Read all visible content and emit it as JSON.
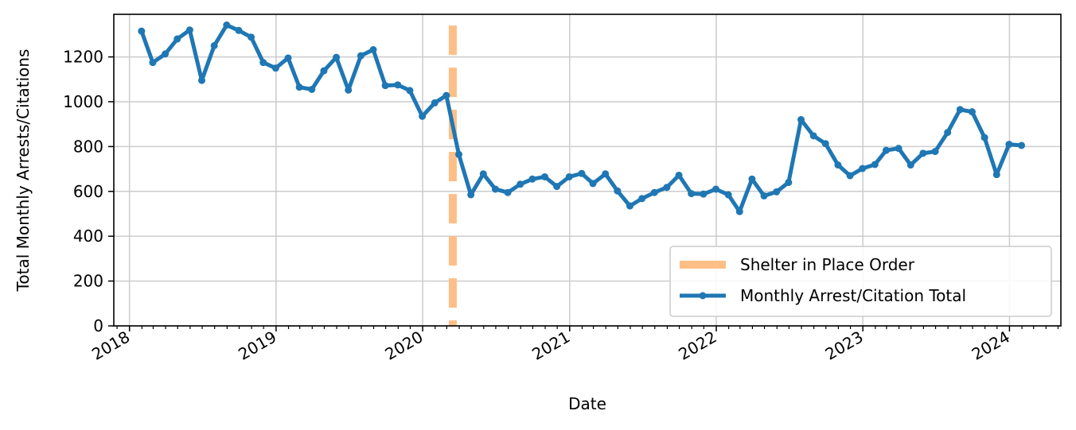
{
  "chart_data": {
    "type": "line",
    "xlabel": "Date",
    "ylabel": "Total Monthly Arrests/Citations",
    "ylim": [
      0,
      1390
    ],
    "xlim": [
      "2017-11-23",
      "2024-05-08"
    ],
    "yticks": [
      0,
      200,
      400,
      600,
      800,
      1000,
      1200
    ],
    "xticks": [
      {
        "date": "2018-01-01",
        "label": "2018"
      },
      {
        "date": "2019-01-01",
        "label": "2019"
      },
      {
        "date": "2020-01-01",
        "label": "2020"
      },
      {
        "date": "2021-01-01",
        "label": "2021"
      },
      {
        "date": "2022-01-01",
        "label": "2022"
      },
      {
        "date": "2023-01-01",
        "label": "2023"
      },
      {
        "date": "2024-01-01",
        "label": "2024"
      }
    ],
    "grid": true,
    "legend_position": "bottom-right",
    "vline": {
      "name": "Shelter in Place Order",
      "date": "2020-03-16",
      "color": "#fdbf86",
      "ymax": 1340
    },
    "series": [
      {
        "name": "Monthly Arrest/Citation Total",
        "color": "#1f77b4",
        "x": [
          "2018-01-31",
          "2018-02-28",
          "2018-03-31",
          "2018-04-30",
          "2018-05-31",
          "2018-06-30",
          "2018-07-31",
          "2018-08-31",
          "2018-09-30",
          "2018-10-31",
          "2018-11-30",
          "2018-12-31",
          "2019-01-31",
          "2019-02-28",
          "2019-03-31",
          "2019-04-30",
          "2019-05-31",
          "2019-06-30",
          "2019-07-31",
          "2019-08-31",
          "2019-09-30",
          "2019-10-31",
          "2019-11-30",
          "2019-12-31",
          "2020-01-31",
          "2020-02-29",
          "2020-03-31",
          "2020-04-30",
          "2020-05-31",
          "2020-06-30",
          "2020-07-31",
          "2020-08-31",
          "2020-09-30",
          "2020-10-31",
          "2020-11-30",
          "2020-12-31",
          "2021-01-31",
          "2021-02-28",
          "2021-03-31",
          "2021-04-30",
          "2021-05-31",
          "2021-06-30",
          "2021-07-31",
          "2021-08-31",
          "2021-09-30",
          "2021-10-31",
          "2021-11-30",
          "2021-12-31",
          "2022-01-31",
          "2022-02-28",
          "2022-03-31",
          "2022-04-30",
          "2022-05-31",
          "2022-06-30",
          "2022-07-31",
          "2022-08-31",
          "2022-09-30",
          "2022-10-31",
          "2022-11-30",
          "2022-12-31",
          "2023-01-31",
          "2023-02-28",
          "2023-03-31",
          "2023-04-30",
          "2023-05-31",
          "2023-06-30",
          "2023-07-31",
          "2023-08-31",
          "2023-09-30",
          "2023-10-31",
          "2023-11-30",
          "2023-12-31",
          "2024-01-31"
        ],
        "values": [
          1315,
          1175,
          1213,
          1280,
          1320,
          1095,
          1250,
          1342,
          1318,
          1288,
          1175,
          1150,
          1195,
          1065,
          1055,
          1138,
          1198,
          1052,
          1205,
          1232,
          1072,
          1075,
          1050,
          935,
          995,
          1028,
          765,
          585,
          678,
          610,
          595,
          632,
          655,
          665,
          622,
          665,
          680,
          635,
          678,
          602,
          535,
          568,
          595,
          618,
          672,
          590,
          588,
          610,
          585,
          510,
          655,
          580,
          598,
          640,
          920,
          848,
          813,
          718,
          670,
          702,
          720,
          783,
          792,
          718,
          770,
          778,
          863,
          965,
          955,
          840,
          675,
          810,
          805
        ]
      }
    ]
  }
}
